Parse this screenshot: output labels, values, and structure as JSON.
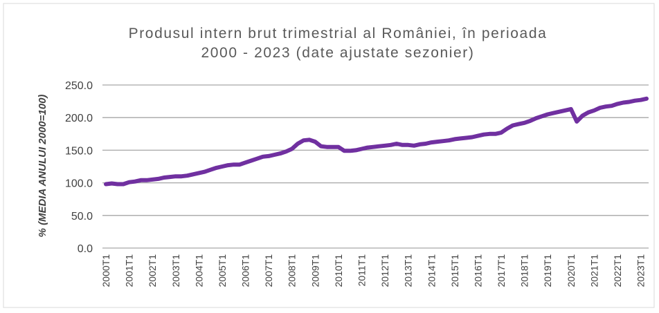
{
  "chart_data": {
    "type": "line",
    "title": [
      "Produsul intern brut trimestrial al României, în perioada",
      "2000 - 2023 (date ajustate sezonier)"
    ],
    "y_label": "% (MEDIA ANULUI 2000=100)",
    "categories": [
      "2000T1",
      null,
      null,
      null,
      "2001T1",
      null,
      null,
      null,
      "2002T1",
      null,
      null,
      null,
      "2003T1",
      null,
      null,
      null,
      "2004T1",
      null,
      null,
      null,
      "2005T1",
      null,
      null,
      null,
      "2006T1",
      null,
      null,
      null,
      "2007T1",
      null,
      null,
      null,
      "2008T1",
      null,
      null,
      null,
      "2009T1",
      null,
      null,
      null,
      "2010T1",
      null,
      null,
      null,
      "2011T1",
      null,
      null,
      null,
      "2012T1",
      null,
      null,
      null,
      "2013T1",
      null,
      null,
      null,
      "2014T1",
      null,
      null,
      null,
      "2015T1",
      null,
      null,
      null,
      "2016T1",
      null,
      null,
      null,
      "2017T1",
      null,
      null,
      null,
      "2018T1",
      null,
      null,
      null,
      "2019T1",
      null,
      null,
      null,
      "2020T1",
      null,
      null,
      null,
      "2021T1",
      null,
      null,
      null,
      "2022T1",
      null,
      null,
      null,
      "2023T1",
      null
    ],
    "series": [
      {
        "color": "#7030a0",
        "values": [
          98,
          99,
          98,
          98,
          101,
          102,
          104,
          104,
          105,
          106,
          108,
          109,
          110,
          110,
          111,
          113,
          115,
          117,
          120,
          123,
          125,
          127,
          128,
          128,
          131,
          134,
          137,
          140,
          141,
          143,
          145,
          148,
          152,
          160,
          165,
          166,
          163,
          156,
          155,
          155,
          155,
          149,
          149,
          150,
          152,
          154,
          155,
          156,
          157,
          158,
          160,
          158,
          158,
          157,
          159,
          160,
          162,
          163,
          164,
          165,
          167,
          168,
          169,
          170,
          172,
          174,
          175,
          175,
          177,
          183,
          188,
          190,
          192,
          195,
          199,
          202,
          205,
          207,
          209,
          211,
          213,
          194,
          203,
          208,
          211,
          215,
          217,
          218,
          221,
          223,
          224,
          226,
          227,
          229
        ]
      }
    ],
    "ylim": [
      0,
      250
    ],
    "yticks": [
      {
        "value": 0,
        "label": "0.0"
      },
      {
        "value": 50,
        "label": "50.0"
      },
      {
        "value": 100,
        "label": "100.0"
      },
      {
        "value": 150,
        "label": "150.0"
      },
      {
        "value": 200,
        "label": "200.0"
      },
      {
        "value": 250,
        "label": "250.0"
      }
    ],
    "grid": true
  }
}
